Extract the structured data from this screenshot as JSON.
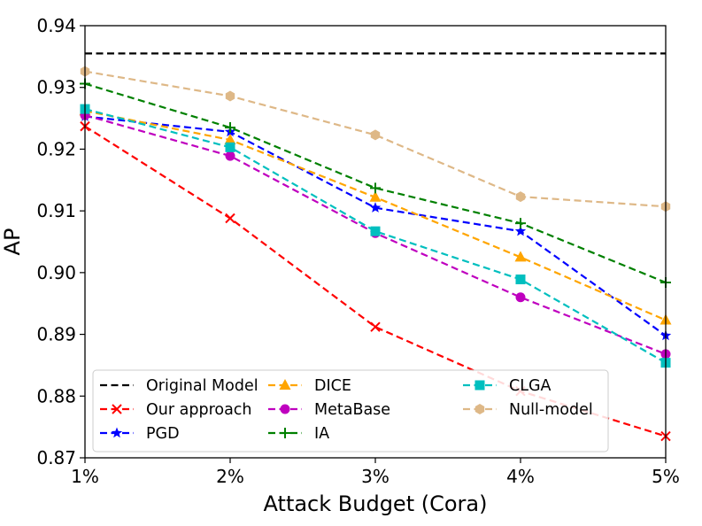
{
  "chart_data": {
    "type": "line",
    "title": "",
    "xlabel": "Attack Budget (Cora)",
    "ylabel": "AP",
    "categories": [
      "1%",
      "2%",
      "3%",
      "4%",
      "5%"
    ],
    "ylim": [
      0.87,
      0.94
    ],
    "yticks": [
      "0.87",
      "0.88",
      "0.89",
      "0.90",
      "0.91",
      "0.92",
      "0.93",
      "0.94"
    ],
    "grid": false,
    "legend_position": "lower-left",
    "series": [
      {
        "name": "Original Model",
        "values": [
          0.9355,
          0.9355,
          0.9355,
          0.9355,
          0.9355
        ],
        "color": "#000000",
        "marker": "none"
      },
      {
        "name": "Our approach",
        "values": [
          0.9237,
          0.9088,
          0.8912,
          0.8808,
          0.8735
        ],
        "color": "#ff0000",
        "marker": "x"
      },
      {
        "name": "PGD",
        "values": [
          0.9253,
          0.9228,
          0.9105,
          0.9067,
          0.8898
        ],
        "color": "#0000ff",
        "marker": "star"
      },
      {
        "name": "DICE",
        "values": [
          0.9262,
          0.9215,
          0.9122,
          0.9025,
          0.8923
        ],
        "color": "#ffa500",
        "marker": "triangle"
      },
      {
        "name": "MetaBase",
        "values": [
          0.9255,
          0.9189,
          0.9064,
          0.896,
          0.8868
        ],
        "color": "#bf00bf",
        "marker": "circle"
      },
      {
        "name": "IA",
        "values": [
          0.9306,
          0.9235,
          0.9137,
          0.908,
          0.8984
        ],
        "color": "#008000",
        "marker": "plus"
      },
      {
        "name": "CLGA",
        "values": [
          0.9265,
          0.9203,
          0.9067,
          0.8989,
          0.8854
        ],
        "color": "#00bfbf",
        "marker": "square"
      },
      {
        "name": "Null-model",
        "values": [
          0.9326,
          0.9286,
          0.9223,
          0.9123,
          0.9107
        ],
        "color": "#deb887",
        "marker": "hexagon"
      }
    ]
  }
}
